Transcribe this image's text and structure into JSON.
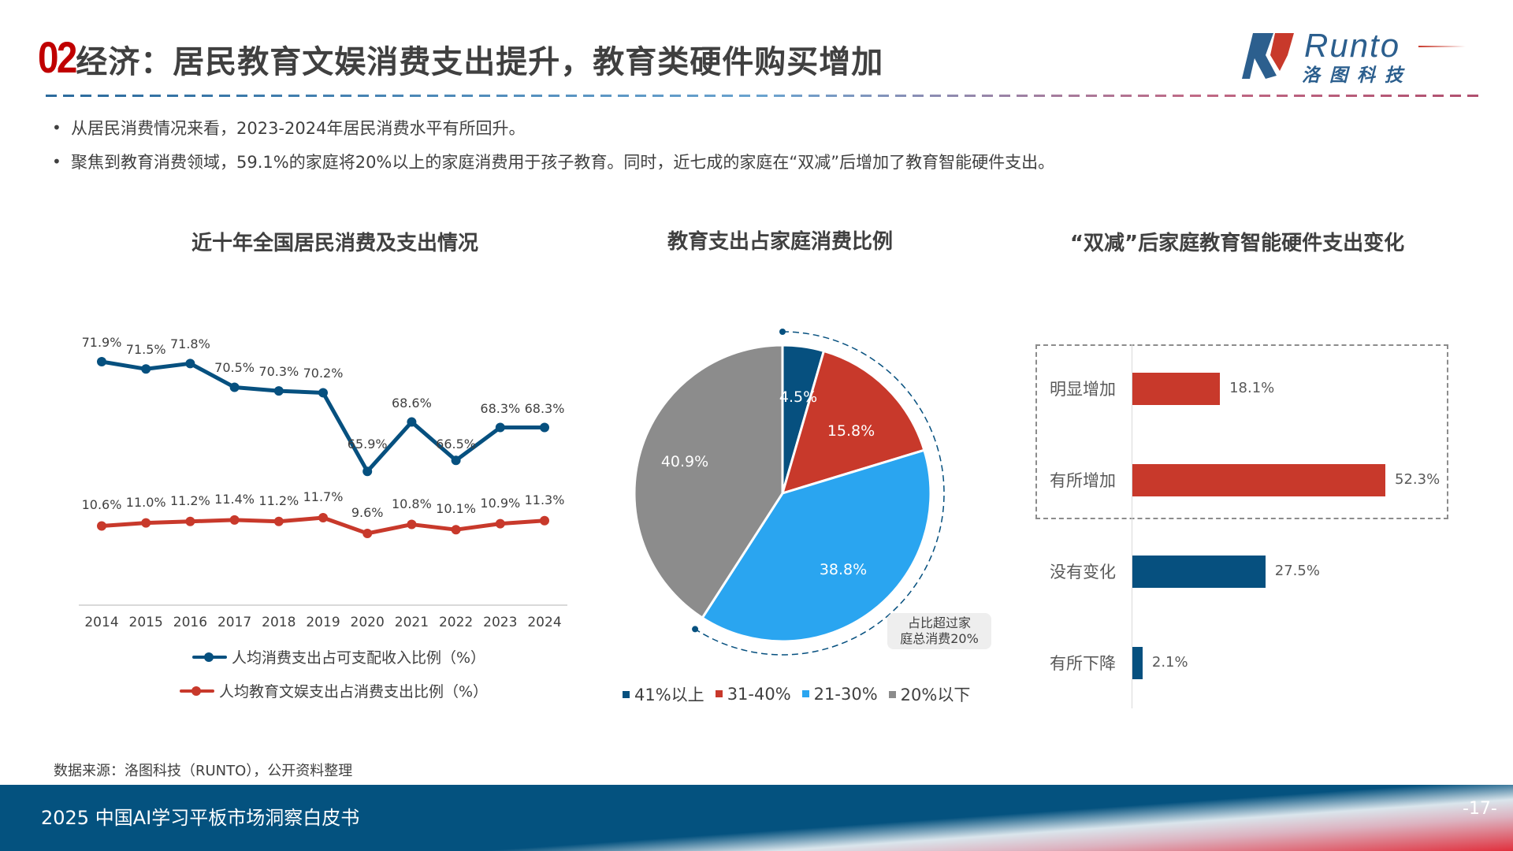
{
  "header": {
    "section_number": "02",
    "title": "经济：居民教育文娱消费支出提升，教育类硬件购买增加",
    "logo": {
      "wordmark": "Runto",
      "cn_name": "洛图科技",
      "icon": "runto-logo-icon"
    }
  },
  "bullets": [
    {
      "text": "从居民消费情况来看，2023-2024年居民消费水平有所回升。"
    },
    {
      "text": "聚焦到教育消费领域，59.1%的家庭将20%以上的家庭消费用于孩子教育。同时，近七成的家庭在“双减”后增加了教育智能硬件支出。"
    }
  ],
  "charts": {
    "line": {
      "title": "近十年全国居民消费及支出情况"
    },
    "pie": {
      "title": "教育支出占家庭消费比例",
      "callout": [
        "占比超过家",
        "庭总消费20%"
      ]
    },
    "bar": {
      "title": "“双减”后家庭教育智能硬件支出变化"
    }
  },
  "chart_data": [
    {
      "type": "line",
      "title": "近十年全国居民消费及支出情况",
      "categories": [
        "2014",
        "2015",
        "2016",
        "2017",
        "2018",
        "2019",
        "2020",
        "2021",
        "2022",
        "2023",
        "2024"
      ],
      "series": [
        {
          "name": "人均消费支出占可支配收入比例（%）",
          "color": "#06507f",
          "values": [
            71.9,
            71.5,
            71.8,
            70.5,
            70.3,
            70.2,
            65.9,
            68.6,
            66.5,
            68.3,
            68.3
          ],
          "labels": [
            "71.9%",
            "71.5%",
            "71.8%",
            "70.5%",
            "70.3%",
            "70.2%",
            "65.9%",
            "68.6%",
            "66.5%",
            "68.3%",
            "68.3%"
          ]
        },
        {
          "name": "人均教育文娱支出占消费支出比例（%）",
          "color": "#c8392b",
          "values": [
            10.6,
            11.0,
            11.2,
            11.4,
            11.2,
            11.7,
            9.6,
            10.8,
            10.1,
            10.9,
            11.3
          ],
          "labels": [
            "10.6%",
            "11.0%",
            "11.2%",
            "11.4%",
            "11.2%",
            "11.7%",
            "9.6%",
            "10.8%",
            "10.1%",
            "10.9%",
            "11.3%"
          ]
        }
      ],
      "legend_position": "bottom",
      "grid": false
    },
    {
      "type": "pie",
      "title": "教育支出占家庭消费比例",
      "categories": [
        "41%以上",
        "31-40%",
        "21-30%",
        "20%以下"
      ],
      "values": [
        4.5,
        15.8,
        38.8,
        40.9
      ],
      "labels": [
        "4.5%",
        "15.8%",
        "38.8%",
        "40.9%"
      ],
      "colors": [
        "#06507f",
        "#c8392b",
        "#2aa5f0",
        "#8c8c8c"
      ],
      "annotation": "占比超过家庭总消费20%",
      "legend_position": "bottom"
    },
    {
      "type": "bar",
      "orientation": "horizontal",
      "title": "“双减”后家庭教育智能硬件支出变化",
      "categories": [
        "明显增加",
        "有所增加",
        "没有变化",
        "有所下降"
      ],
      "values": [
        18.1,
        52.3,
        27.5,
        2.1
      ],
      "labels": [
        "18.1%",
        "52.3%",
        "27.5%",
        "2.1%"
      ],
      "colors": [
        "#c8392b",
        "#c8392b",
        "#06507f",
        "#06507f"
      ],
      "annotation": "dashed box highlighting 明显增加 and 有所增加"
    }
  ],
  "source": "数据来源：洛图科技（RUNTO），公开资料整理",
  "footer": {
    "report_title": "2025 中国AI学习平板市场洞察白皮书",
    "page": "-17-"
  },
  "colors": {
    "accent_red": "#c00000",
    "brand_blue": "#06507f",
    "footer_blue": "#04527f"
  }
}
